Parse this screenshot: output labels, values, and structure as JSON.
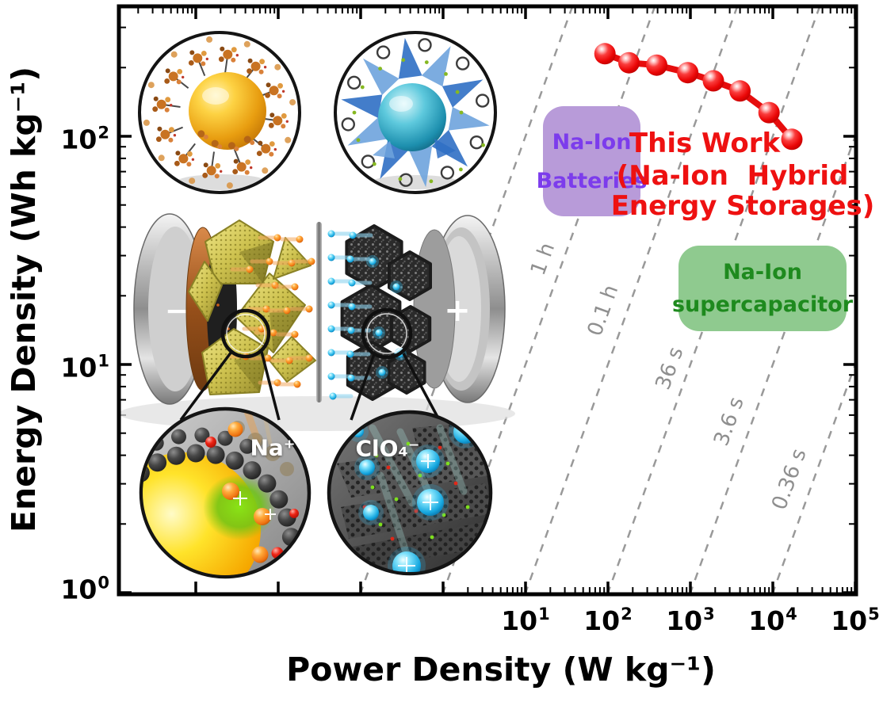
{
  "figure_type": "Ragone plot with device schematic illustration",
  "chart_data": {
    "type": "scatter",
    "x_axis": {
      "label": "Power Density (W kg⁻¹)",
      "scale": "log",
      "tick_base": "10",
      "tick_exponents": [
        1,
        2,
        3,
        4,
        5
      ],
      "tick_labels": [
        "10¹",
        "10²",
        "10³",
        "10⁴",
        "10⁵"
      ],
      "range_decades": [
        -3.9,
        5
      ]
    },
    "y_axis": {
      "label": "Energy Density (Wh kg⁻¹)",
      "scale": "log",
      "tick_base": "10",
      "tick_exponents": [
        0,
        1,
        2
      ],
      "tick_labels": [
        "10⁰",
        "10¹",
        "10²"
      ],
      "range_decades": [
        0,
        2.57
      ]
    },
    "series": [
      {
        "name": "This Work (Na-Ion Hybrid Energy Storages)",
        "color": "#ec0c0c",
        "marker": "sphere",
        "points": [
          {
            "power_W_kg": 92,
            "energy_Wh_kg": 230
          },
          {
            "power_W_kg": 180,
            "energy_Wh_kg": 210
          },
          {
            "power_W_kg": 390,
            "energy_Wh_kg": 205
          },
          {
            "power_W_kg": 930,
            "energy_Wh_kg": 190
          },
          {
            "power_W_kg": 1900,
            "energy_Wh_kg": 175
          },
          {
            "power_W_kg": 4000,
            "energy_Wh_kg": 158
          },
          {
            "power_W_kg": 9000,
            "energy_Wh_kg": 127
          },
          {
            "power_W_kg": 17000,
            "energy_Wh_kg": 97
          }
        ]
      }
    ],
    "time_guide_lines": {
      "style": "dashed",
      "color": "#999999",
      "hours": [
        10,
        1,
        0.1,
        0.01,
        0.001,
        0.0001
      ],
      "labels": [
        "",
        "1 h",
        "0.1 h",
        "36 s",
        "3.6 s",
        "0.36 s"
      ]
    },
    "regions": [
      {
        "label_lines": [
          "Na-Ion",
          "Batteries"
        ],
        "fill": "#b89bd9",
        "text_color": "#7c3cec"
      },
      {
        "label_lines": [
          "Na-Ion",
          "supercapacitor"
        ],
        "fill": "#8fca8f",
        "text_color": "#1e8a1e"
      }
    ],
    "annotation": {
      "lines": [
        "This Work",
        "(Na-Ion  Hybrid",
        "Energy Storages)"
      ],
      "color": "#ee1111"
    },
    "legend_position": "none",
    "grid": "off"
  },
  "illustration": {
    "na_ion_label": "Na⁺",
    "clo4_label": "ClO₄⁻",
    "minus_label": "−",
    "plus_label": "+"
  }
}
